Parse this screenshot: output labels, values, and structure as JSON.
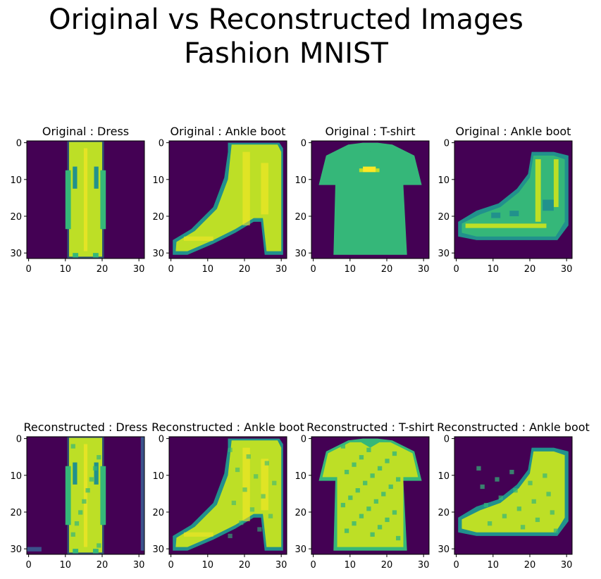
{
  "title": {
    "line1": "Original vs Reconstructed Images",
    "line2": "Fashion MNIST"
  },
  "colors": {
    "background": "#440154",
    "low": "#3b528b",
    "mid": "#21918c",
    "teal_green": "#35b779",
    "high": "#bddf26",
    "peak": "#fde725"
  },
  "chart_data": [
    {
      "type": "heatmap",
      "title": "Original :  Dress",
      "item": "dress",
      "variant": "original",
      "cmap": "viridis",
      "xticks": [
        0,
        10,
        20,
        30
      ],
      "yticks": [
        0,
        10,
        20,
        30
      ],
      "xlim": [
        -0.5,
        31.5
      ],
      "ylim": [
        31.5,
        -0.5
      ]
    },
    {
      "type": "heatmap",
      "title": "Original :  Ankle boot",
      "item": "boot_high",
      "variant": "original",
      "cmap": "viridis",
      "xticks": [
        0,
        10,
        20,
        30
      ],
      "yticks": [
        0,
        10,
        20,
        30
      ],
      "xlim": [
        -0.5,
        31.5
      ],
      "ylim": [
        31.5,
        -0.5
      ]
    },
    {
      "type": "heatmap",
      "title": "Original :  T-shirt",
      "item": "tshirt",
      "variant": "original",
      "cmap": "viridis",
      "xticks": [
        0,
        10,
        20,
        30
      ],
      "yticks": [
        0,
        10,
        20,
        30
      ],
      "xlim": [
        -0.5,
        31.5
      ],
      "ylim": [
        31.5,
        -0.5
      ]
    },
    {
      "type": "heatmap",
      "title": "Original :  Ankle boot",
      "item": "boot_low",
      "variant": "original",
      "cmap": "viridis",
      "xticks": [
        0,
        10,
        20,
        30
      ],
      "yticks": [
        0,
        10,
        20,
        30
      ],
      "xlim": [
        -0.5,
        31.5
      ],
      "ylim": [
        31.5,
        -0.5
      ]
    },
    {
      "type": "heatmap",
      "title": "Reconstructed :  Dress",
      "item": "dress",
      "variant": "reconstructed",
      "cmap": "viridis",
      "xticks": [
        0,
        10,
        20,
        30
      ],
      "yticks": [
        0,
        10,
        20,
        30
      ],
      "xlim": [
        -0.5,
        31.5
      ],
      "ylim": [
        31.5,
        -0.5
      ]
    },
    {
      "type": "heatmap",
      "title": "Reconstructed :  Ankle boot",
      "item": "boot_high",
      "variant": "reconstructed",
      "cmap": "viridis",
      "xticks": [
        0,
        10,
        20,
        30
      ],
      "yticks": [
        0,
        10,
        20,
        30
      ],
      "xlim": [
        -0.5,
        31.5
      ],
      "ylim": [
        31.5,
        -0.5
      ]
    },
    {
      "type": "heatmap",
      "title": "Reconstructed :  T-shirt",
      "item": "tshirt",
      "variant": "reconstructed",
      "cmap": "viridis",
      "xticks": [
        0,
        10,
        20,
        30
      ],
      "yticks": [
        0,
        10,
        20,
        30
      ],
      "xlim": [
        -0.5,
        31.5
      ],
      "ylim": [
        31.5,
        -0.5
      ]
    },
    {
      "type": "heatmap",
      "title": "Reconstructed :  Ankle boot",
      "item": "boot_low",
      "variant": "reconstructed",
      "cmap": "viridis",
      "xticks": [
        0,
        10,
        20,
        30
      ],
      "yticks": [
        0,
        10,
        20,
        30
      ],
      "xlim": [
        -0.5,
        31.5
      ],
      "ylim": [
        31.5,
        -0.5
      ]
    }
  ]
}
